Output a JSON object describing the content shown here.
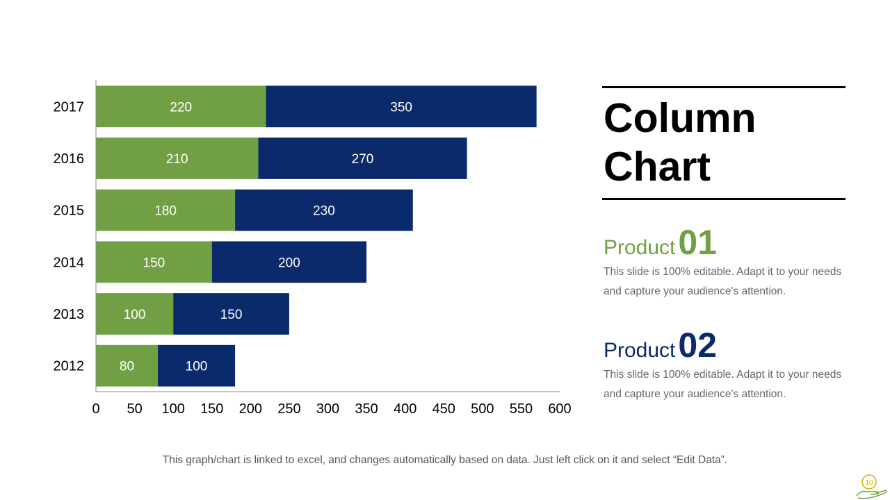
{
  "chart_data": {
    "type": "bar",
    "orientation": "horizontal",
    "stacked": true,
    "categories": [
      "2012",
      "2013",
      "2014",
      "2015",
      "2016",
      "2017"
    ],
    "series": [
      {
        "values": [
          80,
          100,
          150,
          180,
          210,
          220
        ],
        "color": "#70a043"
      },
      {
        "values": [
          100,
          150,
          200,
          230,
          270,
          350
        ],
        "color": "#0a2a6b"
      }
    ],
    "xlim": [
      0,
      600
    ],
    "xticks": [
      0,
      50,
      100,
      150,
      200,
      250,
      300,
      350,
      400,
      450,
      500,
      550,
      600
    ],
    "data_labels": true,
    "grid": false
  },
  "side": {
    "title_line1": "Column",
    "title_line2": "Chart",
    "product1": {
      "word": "Product",
      "number": "01",
      "description": "This slide is 100% editable. Adapt it to your needs and capture your audience's attention."
    },
    "product2": {
      "word": "Product",
      "number": "02",
      "description": "This slide is 100% editable. Adapt it to your needs and capture your audience's attention."
    }
  },
  "footer": {
    "note": "This graph/chart is linked to excel, and changes automatically  based on data. Just left click on it and select “Edit Data”."
  },
  "page_number": "10",
  "colors": {
    "green": "#70a043",
    "navy": "#0a2a6b"
  }
}
